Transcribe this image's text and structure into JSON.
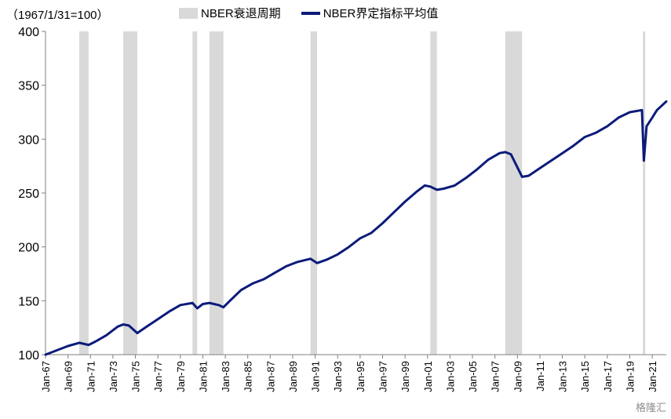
{
  "chart_data": {
    "type": "line",
    "unit_note": "（1967/1/31=100）",
    "title": "",
    "xlabel": "",
    "ylabel": "",
    "ylim": [
      100,
      400
    ],
    "yticks": [
      100,
      150,
      200,
      250,
      300,
      350,
      400
    ],
    "x_start": "1967-01",
    "x_end": "2022-04",
    "xtick_labels": [
      "Jan-67",
      "Jan-69",
      "Jan-71",
      "Jan-73",
      "Jan-75",
      "Jan-77",
      "Jan-79",
      "Jan-81",
      "Jan-83",
      "Jan-85",
      "Jan-87",
      "Jan-89",
      "Jan-91",
      "Jan-93",
      "Jan-95",
      "Jan-97",
      "Jan-99",
      "Jan-01",
      "Jan-03",
      "Jan-05",
      "Jan-07",
      "Jan-09",
      "Jan-11",
      "Jan-13",
      "Jan-15",
      "Jan-17",
      "Jan-19",
      "Jan-21"
    ],
    "grid": false,
    "legend_position": "top",
    "legend": {
      "recession_label": "NBER衰退周期",
      "series_label": "NBER界定指标平均值"
    },
    "recessions": [
      {
        "start": "1970-01",
        "end": "1970-11"
      },
      {
        "start": "1973-12",
        "end": "1975-03"
      },
      {
        "start": "1980-02",
        "end": "1980-07"
      },
      {
        "start": "1981-08",
        "end": "1982-11"
      },
      {
        "start": "1990-08",
        "end": "1991-03"
      },
      {
        "start": "2001-04",
        "end": "2001-11"
      },
      {
        "start": "2007-12",
        "end": "2009-06"
      },
      {
        "start": "2020-03",
        "end": "2020-04"
      }
    ],
    "series": [
      {
        "name": "NBER界定指标平均值",
        "color": "#0b1b7a",
        "points": [
          [
            "1967-01",
            100
          ],
          [
            "1968-01",
            104
          ],
          [
            "1969-01",
            108
          ],
          [
            "1970-01",
            111
          ],
          [
            "1970-11",
            109
          ],
          [
            "1971-06",
            112
          ],
          [
            "1972-06",
            118
          ],
          [
            "1973-06",
            126
          ],
          [
            "1973-12",
            128
          ],
          [
            "1974-06",
            127
          ],
          [
            "1975-03",
            120
          ],
          [
            "1976-01",
            126
          ],
          [
            "1977-01",
            133
          ],
          [
            "1978-01",
            140
          ],
          [
            "1979-01",
            146
          ],
          [
            "1980-02",
            148
          ],
          [
            "1980-07",
            143
          ],
          [
            "1981-01",
            147
          ],
          [
            "1981-08",
            148
          ],
          [
            "1982-06",
            146
          ],
          [
            "1982-11",
            144
          ],
          [
            "1983-06",
            150
          ],
          [
            "1984-06",
            160
          ],
          [
            "1985-06",
            166
          ],
          [
            "1986-06",
            170
          ],
          [
            "1987-06",
            176
          ],
          [
            "1988-06",
            182
          ],
          [
            "1989-06",
            186
          ],
          [
            "1990-08",
            189
          ],
          [
            "1991-03",
            185
          ],
          [
            "1992-01",
            188
          ],
          [
            "1993-01",
            193
          ],
          [
            "1994-01",
            200
          ],
          [
            "1995-01",
            208
          ],
          [
            "1996-01",
            213
          ],
          [
            "1997-01",
            222
          ],
          [
            "1998-01",
            232
          ],
          [
            "1999-01",
            242
          ],
          [
            "2000-01",
            251
          ],
          [
            "2000-10",
            257
          ],
          [
            "2001-04",
            256
          ],
          [
            "2001-11",
            253
          ],
          [
            "2002-06",
            254
          ],
          [
            "2003-06",
            257
          ],
          [
            "2004-06",
            264
          ],
          [
            "2005-06",
            272
          ],
          [
            "2006-06",
            281
          ],
          [
            "2007-06",
            287
          ],
          [
            "2007-12",
            288
          ],
          [
            "2008-06",
            286
          ],
          [
            "2009-06",
            265
          ],
          [
            "2010-01",
            266
          ],
          [
            "2011-01",
            273
          ],
          [
            "2012-01",
            280
          ],
          [
            "2013-01",
            287
          ],
          [
            "2014-01",
            294
          ],
          [
            "2015-01",
            302
          ],
          [
            "2016-01",
            306
          ],
          [
            "2017-01",
            312
          ],
          [
            "2018-01",
            320
          ],
          [
            "2019-01",
            325
          ],
          [
            "2020-02",
            327
          ],
          [
            "2020-04",
            280
          ],
          [
            "2020-07",
            312
          ],
          [
            "2021-01",
            320
          ],
          [
            "2021-06",
            327
          ],
          [
            "2022-04",
            335
          ]
        ]
      }
    ]
  },
  "watermark": "格隆汇"
}
